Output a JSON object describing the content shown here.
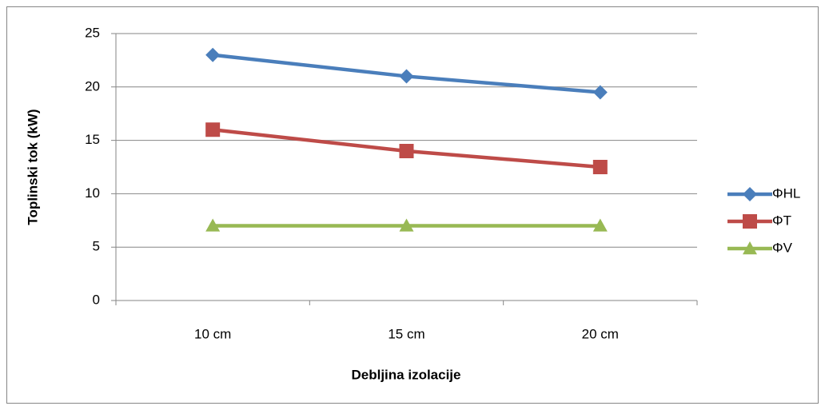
{
  "chart_data": {
    "type": "line",
    "x_label": "Debljina izolacije",
    "y_label": "Toplinski tok (kW)",
    "categories": [
      "10 cm",
      "15 cm",
      "20 cm"
    ],
    "series": [
      {
        "name": "ΦHL",
        "color": "#4a7ebb",
        "marker": "diamond",
        "values": [
          23,
          21,
          19.5
        ]
      },
      {
        "name": "ΦT",
        "color": "#be4b48",
        "marker": "square",
        "values": [
          16,
          14,
          12.5
        ]
      },
      {
        "name": "ΦV",
        "color": "#98b954",
        "marker": "triangle",
        "values": [
          7,
          7,
          7
        ]
      }
    ],
    "ylim": [
      0,
      25
    ],
    "yticks": [
      0,
      5,
      10,
      15,
      20,
      25
    ],
    "grid": true,
    "legend": "right"
  }
}
